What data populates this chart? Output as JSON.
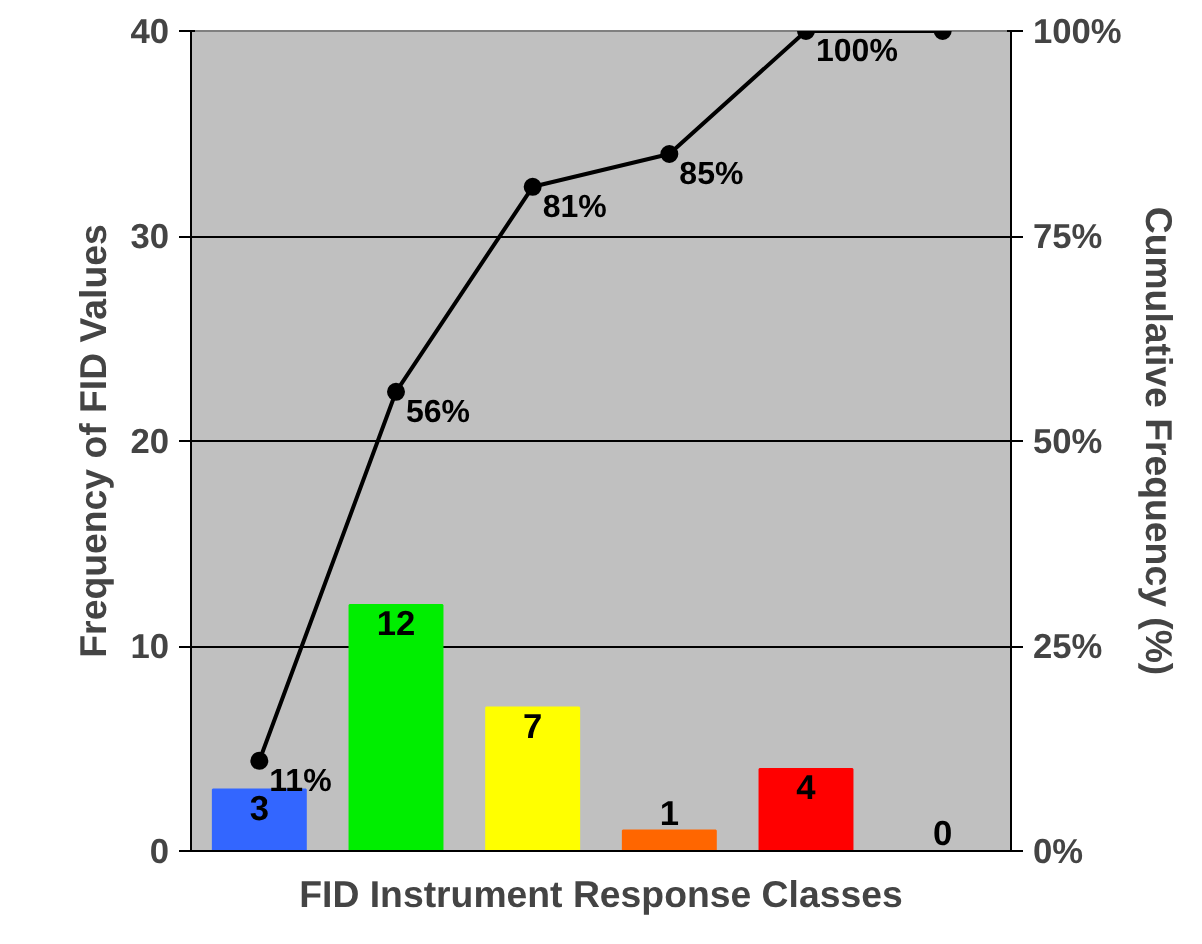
{
  "chart_data": {
    "type": "bar",
    "xlabel": "FID Instrument Response Classes",
    "ylabel": "Frequency of FID Values",
    "y2label": "Cumulative Frequency (%)",
    "categories": [
      null,
      null,
      null,
      null,
      null,
      null
    ],
    "series": [
      {
        "values": [
          3,
          12,
          7,
          1,
          4,
          0
        ],
        "colors": [
          "#3366ff",
          "#00ee00",
          "#ffff00",
          "#ff6600",
          "#ff0000",
          "#c0c0c0"
        ]
      },
      {
        "type": "line",
        "axis": "y2",
        "color": "#000000",
        "values": [
          11,
          56,
          81,
          85,
          100,
          100
        ],
        "value_labels": [
          "11%",
          "56%",
          "81%",
          "85%",
          "100%",
          null
        ]
      }
    ],
    "data_labels": true,
    "ylim": [
      0,
      40
    ],
    "yticks": [
      0,
      10,
      20,
      30,
      40
    ],
    "y2lim": [
      0,
      100
    ],
    "y2ticks": [
      {
        "value": 0,
        "label": "0%"
      },
      {
        "value": 25,
        "label": "25%"
      },
      {
        "value": 50,
        "label": "50%"
      },
      {
        "value": 75,
        "label": "75%"
      },
      {
        "value": 100,
        "label": "100%"
      }
    ],
    "grid": "y",
    "marker": "circle",
    "line_style": "solid"
  }
}
